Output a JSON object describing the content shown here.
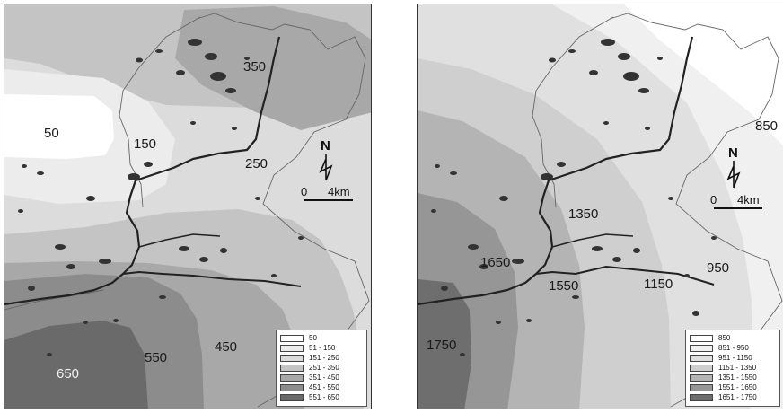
{
  "left_map": {
    "contour_labels": {
      "c50": "50",
      "c150": "150",
      "c250": "250",
      "c350": "350",
      "c450": "450",
      "c550": "550",
      "c650": "650"
    },
    "north": "N",
    "scale": {
      "zero": "0",
      "dist": "4km"
    },
    "legend": [
      {
        "label": "50",
        "color": "#ffffff"
      },
      {
        "label": "51 - 150",
        "color": "#ececec"
      },
      {
        "label": "151 - 250",
        "color": "#dcdcdc"
      },
      {
        "label": "251 - 350",
        "color": "#c4c4c4"
      },
      {
        "label": "351 - 450",
        "color": "#a8a8a8"
      },
      {
        "label": "451 - 550",
        "color": "#8c8c8c"
      },
      {
        "label": "551 - 650",
        "color": "#6a6a6a"
      }
    ]
  },
  "right_map": {
    "contour_labels": {
      "c850": "850",
      "c950": "950",
      "c1150": "1150",
      "c1350": "1350",
      "c1550": "1550",
      "c1650": "1650",
      "c1750": "1750"
    },
    "north": "N",
    "scale": {
      "zero": "0",
      "dist": "4km"
    },
    "legend": [
      {
        "label": "850",
        "color": "#ffffff"
      },
      {
        "label": "851 - 950",
        "color": "#f0f0f0"
      },
      {
        "label": "951 - 1150",
        "color": "#e0e0e0"
      },
      {
        "label": "1151 - 1350",
        "color": "#cfcfcf"
      },
      {
        "label": "1351 - 1550",
        "color": "#b4b4b4"
      },
      {
        "label": "1551 - 1650",
        "color": "#969696"
      },
      {
        "label": "1651 - 1750",
        "color": "#6e6e6e"
      }
    ]
  }
}
